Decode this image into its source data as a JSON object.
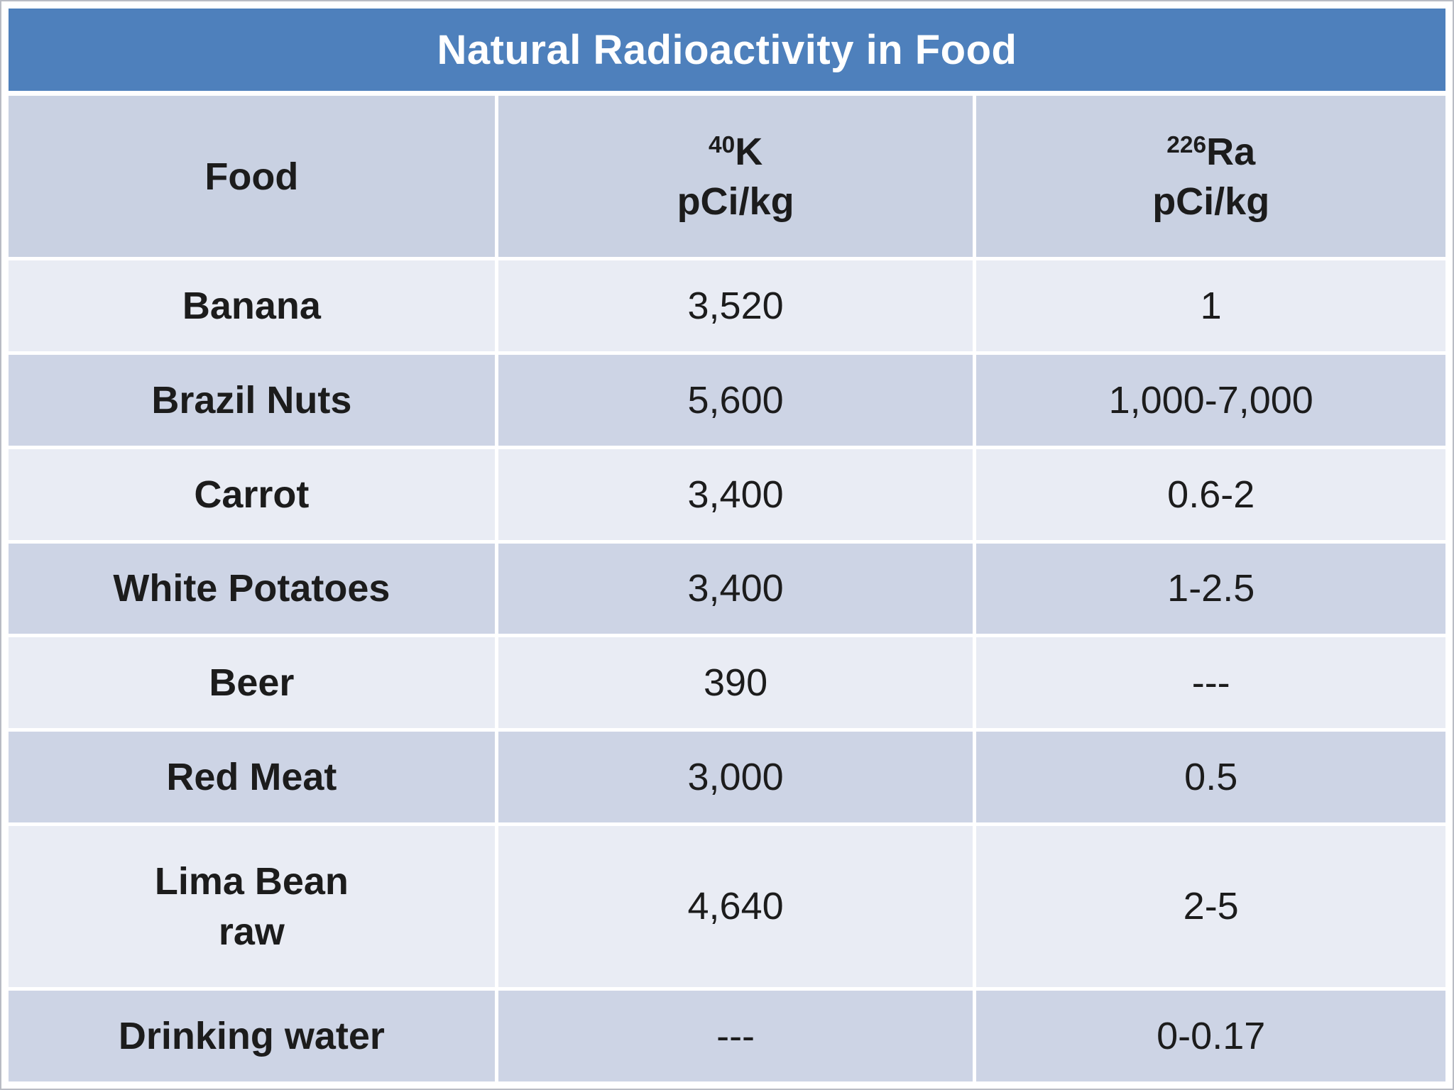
{
  "title": "Natural Radioactivity in Food",
  "table": {
    "columns": [
      {
        "label": "Food"
      },
      {
        "isotope_mass": "40",
        "isotope_symbol": "K",
        "unit": "pCi/kg"
      },
      {
        "isotope_mass": "226",
        "isotope_symbol": "Ra",
        "unit": "pCi/kg"
      }
    ],
    "rows": [
      {
        "food": "Banana",
        "k40": "3,520",
        "ra226": "1"
      },
      {
        "food": "Brazil Nuts",
        "k40": "5,600",
        "ra226": "1,000-7,000"
      },
      {
        "food": "Carrot",
        "k40": "3,400",
        "ra226": "0.6-2"
      },
      {
        "food": "White Potatoes",
        "k40": "3,400",
        "ra226": "1-2.5"
      },
      {
        "food": "Beer",
        "k40": "390",
        "ra226": "---"
      },
      {
        "food": "Red Meat",
        "k40": "3,000",
        "ra226": "0.5"
      },
      {
        "food": "Lima Bean\nraw",
        "k40": "4,640",
        "ra226": "2-5"
      },
      {
        "food": "Drinking water",
        "k40": "---",
        "ra226": "0-0.17"
      }
    ]
  },
  "chart_data": {
    "type": "table",
    "title": "Natural Radioactivity in Food",
    "columns": [
      "Food",
      "⁴⁰K pCi/kg",
      "²²⁶Ra pCi/kg"
    ],
    "rows": [
      [
        "Banana",
        "3,520",
        "1"
      ],
      [
        "Brazil Nuts",
        "5,600",
        "1,000-7,000"
      ],
      [
        "Carrot",
        "3,400",
        "0.6-2"
      ],
      [
        "White Potatoes",
        "3,400",
        "1-2.5"
      ],
      [
        "Beer",
        "390",
        "---"
      ],
      [
        "Red Meat",
        "3,000",
        "0.5"
      ],
      [
        "Lima Bean raw",
        "4,640",
        "2-5"
      ],
      [
        "Drinking water",
        "---",
        "0-0.17"
      ]
    ]
  },
  "colors": {
    "title_bar": "#4e80bc",
    "title_text": "#ffffff",
    "header_row": "#c9d1e2",
    "row_light": "#e9ecf4",
    "row_dark": "#cdd4e5",
    "grid_lines": "#ffffff",
    "text": "#1c1c1c"
  }
}
